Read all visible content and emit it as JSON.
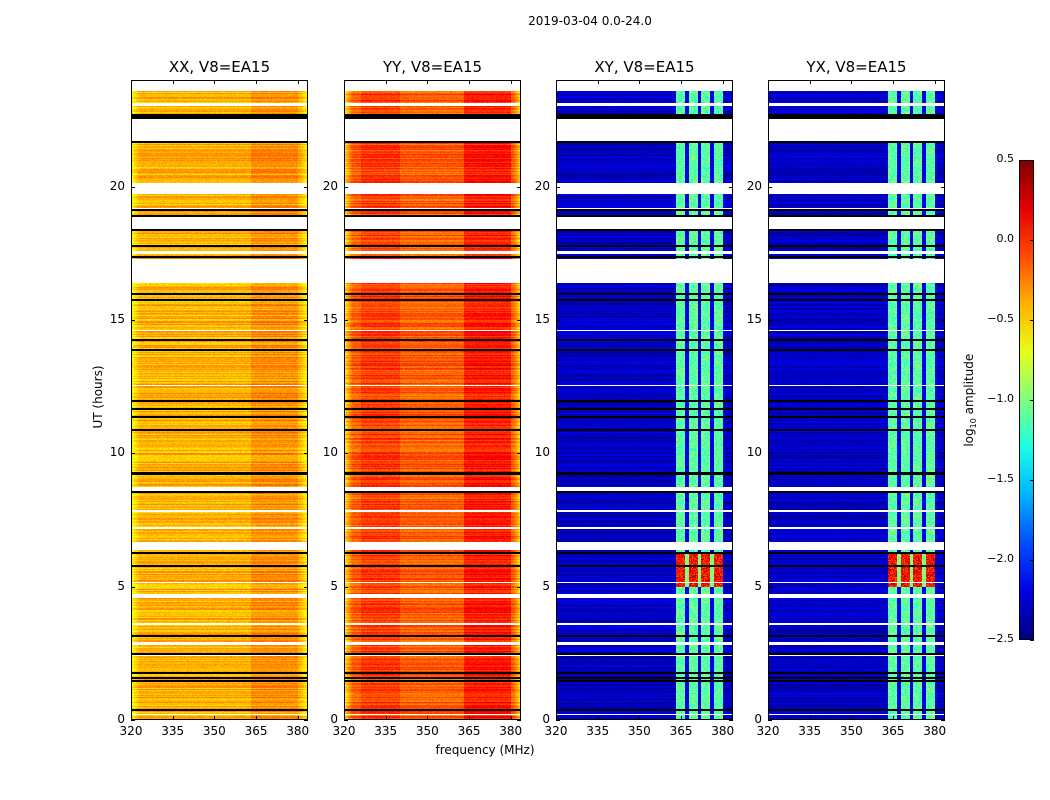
{
  "chart_data": {
    "type": "heatmap",
    "title": "2019-03-04 0.0-24.0",
    "xlabel": "frequency (MHz)",
    "ylabel": "UT (hours)",
    "xlim": [
      320,
      383.7
    ],
    "ylim": [
      0,
      24
    ],
    "xticks": [
      "320",
      "335",
      "350",
      "365",
      "380"
    ],
    "xtick_values": [
      320,
      335,
      350,
      365,
      380
    ],
    "yticks": [
      "0",
      "5",
      "10",
      "15",
      "20"
    ],
    "ytick_values": [
      0,
      5,
      10,
      15,
      20
    ],
    "colorbar": {
      "label": "log10 amplitude",
      "label_main": "log",
      "label_sub": "10",
      "label_rest": " amplitude",
      "range": [
        -2.5,
        0.5
      ],
      "ticks": [
        "0.5",
        "0.0",
        "−0.5",
        "−1.0",
        "−1.5",
        "−2.0",
        "−2.5"
      ],
      "tick_values": [
        0.5,
        0.0,
        -0.5,
        -1.0,
        -1.5,
        -2.0,
        -2.5
      ],
      "colormap": "jet"
    },
    "panels": [
      {
        "title": "XX, V8=EA15",
        "base": -0.4,
        "band_level": -0.3,
        "edge_drop": -0.25
      },
      {
        "title": "YY, V8=EA15",
        "base": -0.15,
        "band_level": 0.05,
        "edge_drop": -0.4
      },
      {
        "title": "XY, V8=EA15",
        "base": -2.3,
        "band_level": -1.1,
        "edge_drop": 0
      },
      {
        "title": "YX, V8=EA15",
        "base": -2.3,
        "band_level": -1.1,
        "edge_drop": 0
      }
    ],
    "bright_band_mhz": [
      363,
      380
    ],
    "band_gaps_mhz": [
      367,
      371.5,
      376
    ],
    "flagged_hours": [
      [
        23.6,
        24
      ],
      [
        21.7,
        22.55
      ],
      [
        19.75,
        20.15
      ],
      [
        18.4,
        18.95
      ],
      [
        16.4,
        17.3
      ],
      [
        8.6,
        8.75
      ],
      [
        6.4,
        6.7
      ],
      [
        4.6,
        4.75
      ],
      [
        2.85,
        2.95
      ],
      [
        0.2,
        0.25
      ],
      [
        23.05,
        23.15
      ],
      [
        19.1,
        19.2
      ],
      [
        17.5,
        17.6
      ],
      [
        14.6,
        14.65
      ],
      [
        12.55,
        12.6
      ],
      [
        7.8,
        7.9
      ],
      [
        7.2,
        7.25
      ],
      [
        5.8,
        5.85
      ],
      [
        5.15,
        5.2
      ],
      [
        3.6,
        3.65
      ],
      [
        2.4,
        2.45
      ],
      [
        1.45,
        1.5
      ]
    ],
    "black_lines_hours": [
      22.6,
      22.65,
      22.72,
      21.7,
      19.15,
      18.95,
      18.4,
      17.8,
      17.4,
      16.0,
      15.8,
      14.3,
      13.9,
      12.0,
      11.7,
      11.4,
      10.9,
      9.3,
      9.25,
      8.6,
      6.3,
      5.8,
      3.2,
      2.5,
      1.8,
      1.6,
      1.5,
      0.4
    ]
  }
}
